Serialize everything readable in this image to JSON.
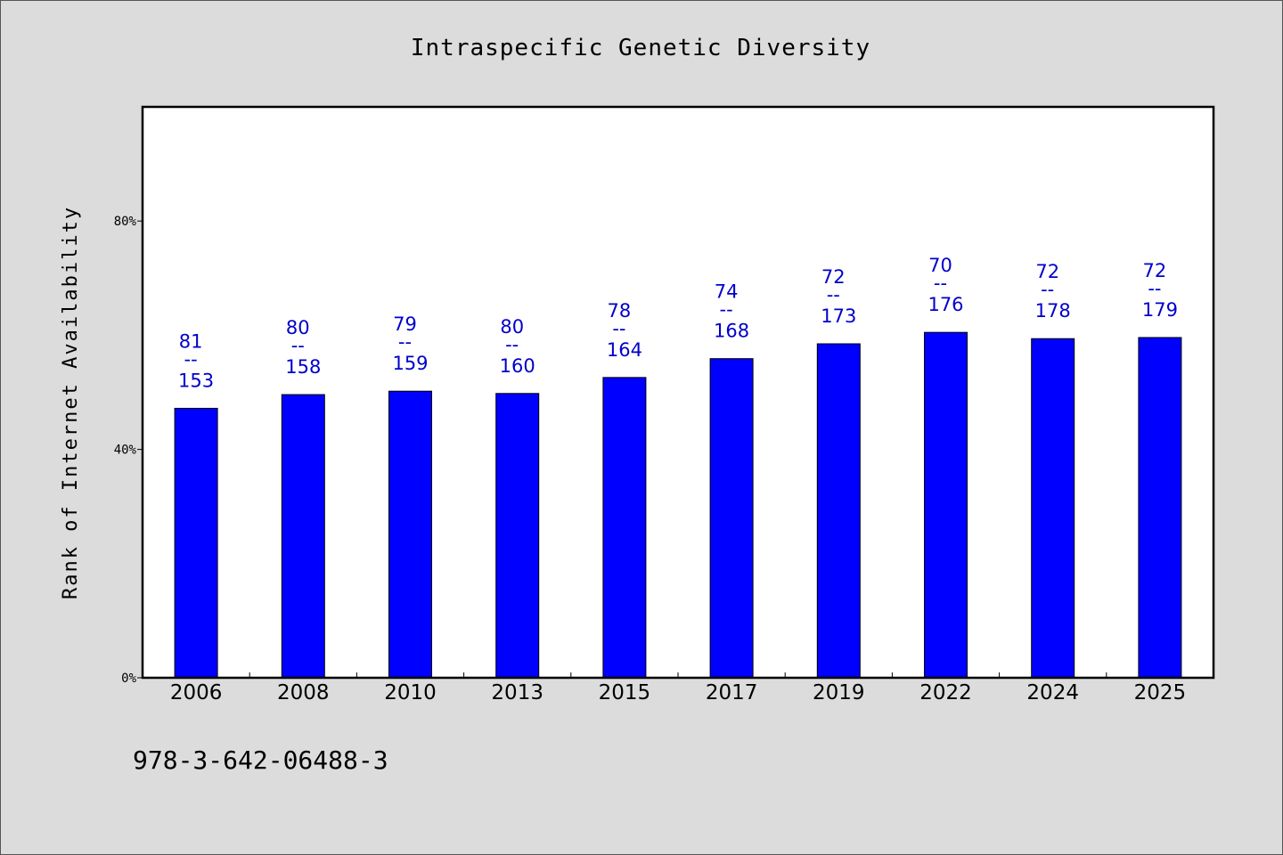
{
  "chart_data": {
    "type": "bar",
    "title": "Intraspecific Genetic Diversity",
    "xlabel": "",
    "ylabel": "Rank of Internet Availability",
    "categories": [
      "2006",
      "2008",
      "2010",
      "2013",
      "2015",
      "2017",
      "2019",
      "2022",
      "2024",
      "2025"
    ],
    "values": [
      47.2,
      49.6,
      50.2,
      49.8,
      52.6,
      55.9,
      58.5,
      60.5,
      59.4,
      59.6
    ],
    "value_unit": "%",
    "data_labels_top": [
      "81",
      "80",
      "79",
      "80",
      "78",
      "74",
      "72",
      "70",
      "72",
      "72"
    ],
    "data_labels_separator": "--",
    "data_labels_bottom": [
      "153",
      "158",
      "159",
      "160",
      "164",
      "168",
      "173",
      "176",
      "178",
      "179"
    ],
    "ylim": [
      0,
      100
    ],
    "yticks": [
      0,
      40,
      80
    ],
    "ytick_labels": [
      "0%",
      "40%",
      "80%"
    ],
    "grid": false,
    "legend": "none",
    "bar_color": "#0000ff",
    "label_color": "#0000cc",
    "background_color": "#dcdcdc",
    "plot_background_color": "#ffffff"
  },
  "footer": {
    "isbn": "978-3-642-06488-3"
  }
}
